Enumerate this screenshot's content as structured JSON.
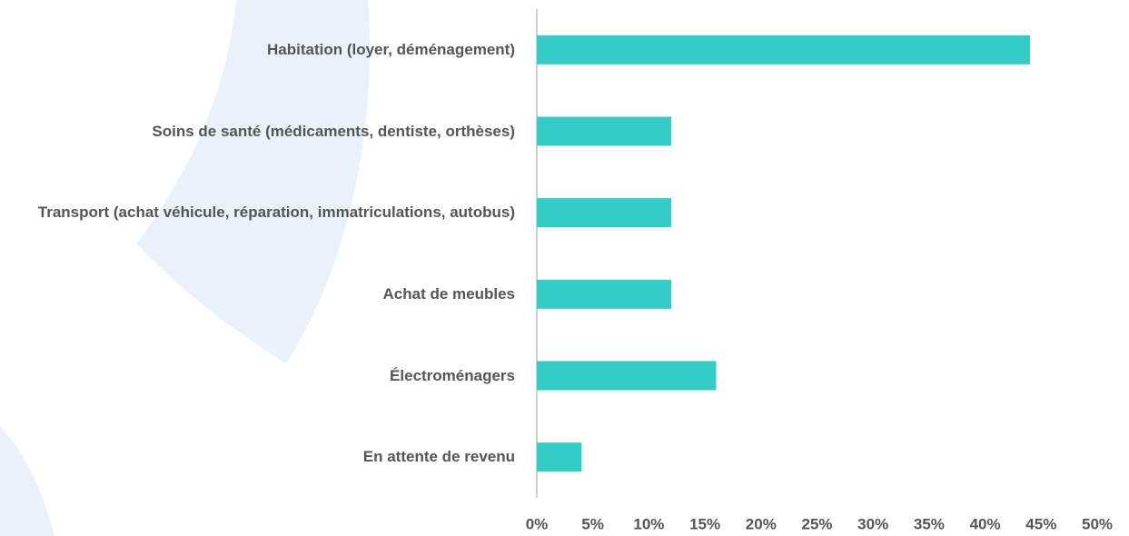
{
  "chart_data": {
    "type": "bar",
    "orientation": "horizontal",
    "categories": [
      "Habitation (loyer, déménagement)",
      "Soins de santé (médicaments, dentiste, orthèses)",
      "Transport (achat véhicule, réparation, immatriculations, autobus)",
      "Achat de meubles",
      "Électroménagers",
      "En attente de revenu"
    ],
    "values": [
      44,
      12,
      12,
      12,
      16,
      4
    ],
    "color": "#33cdc6",
    "xlim": [
      0,
      50
    ],
    "xticks": [
      {
        "value": 0,
        "label": "0%"
      },
      {
        "value": 5,
        "label": "5%"
      },
      {
        "value": 10,
        "label": "10%"
      },
      {
        "value": 15,
        "label": "15%"
      },
      {
        "value": 20,
        "label": "20%"
      },
      {
        "value": 25,
        "label": "25%"
      },
      {
        "value": 30,
        "label": "30%"
      },
      {
        "value": 35,
        "label": "35%"
      },
      {
        "value": 40,
        "label": "40%"
      },
      {
        "value": 45,
        "label": "45%"
      },
      {
        "value": 50,
        "label": "50%"
      }
    ],
    "grid": false
  }
}
